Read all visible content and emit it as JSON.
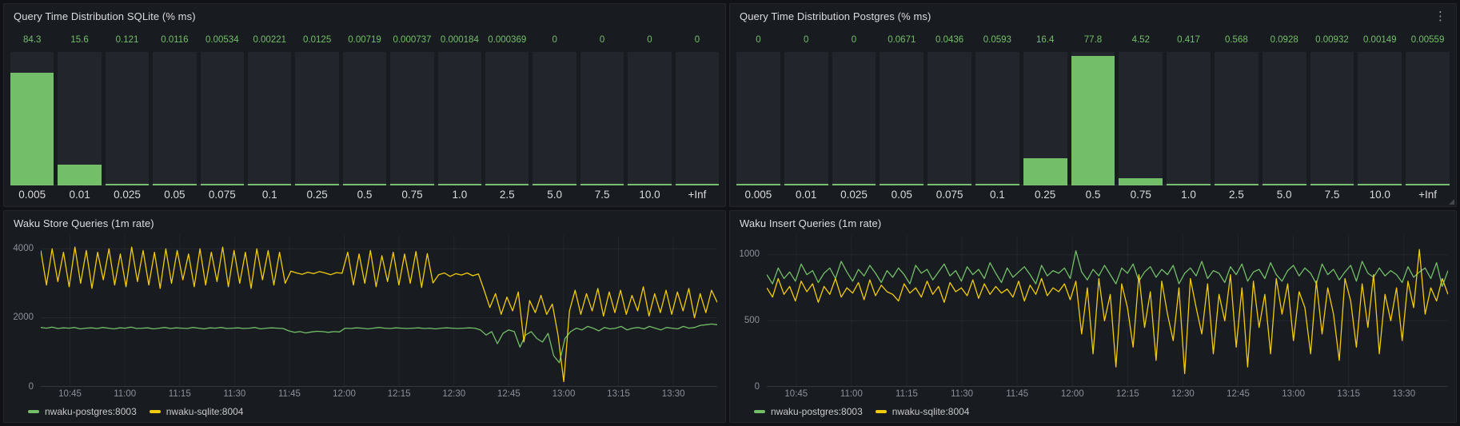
{
  "colors": {
    "green": "#73bf69",
    "yellow": "#f2cc0c",
    "panel_bg": "#181b1f",
    "page_bg": "#111217",
    "bar_track": "#22252b"
  },
  "icons": {
    "panel_menu": "⋮"
  },
  "chart_data": [
    {
      "id": "hist-sqlite",
      "type": "bar",
      "title": "Query Time Distribution SQLite (% ms)",
      "categories": [
        "0.005",
        "0.01",
        "0.025",
        "0.05",
        "0.075",
        "0.1",
        "0.25",
        "0.5",
        "0.75",
        "1.0",
        "2.5",
        "5.0",
        "7.5",
        "10.0",
        "+Inf"
      ],
      "values": [
        84.3,
        15.6,
        0.121,
        0.0116,
        0.00534,
        0.00221,
        0.0125,
        0.00719,
        0.000737,
        0.000184,
        0.000369,
        0,
        0,
        0,
        0
      ],
      "value_labels": [
        "84.3",
        "15.6",
        "0.121",
        "0.0116",
        "0.00534",
        "0.00221",
        "0.0125",
        "0.00719",
        "0.000737",
        "0.000184",
        "0.000369",
        "0",
        "0",
        "0",
        "0"
      ],
      "ymax": 100
    },
    {
      "id": "hist-postgres",
      "type": "bar",
      "title": "Query Time Distribution Postgres (% ms)",
      "categories": [
        "0.005",
        "0.01",
        "0.025",
        "0.05",
        "0.075",
        "0.1",
        "0.25",
        "0.5",
        "0.75",
        "1.0",
        "2.5",
        "5.0",
        "7.5",
        "10.0",
        "+Inf"
      ],
      "values": [
        0,
        0,
        0,
        0.0671,
        0.0436,
        0.0593,
        16.4,
        77.8,
        4.52,
        0.417,
        0.568,
        0.0928,
        0.00932,
        0.00149,
        0.00559
      ],
      "value_labels": [
        "0",
        "0",
        "0",
        "0.0671",
        "0.0436",
        "0.0593",
        "16.4",
        "77.8",
        "4.52",
        "0.417",
        "0.568",
        "0.0928",
        "0.00932",
        "0.00149",
        "0.00559"
      ],
      "ymax": 80
    },
    {
      "id": "ts-store",
      "type": "line",
      "title": "Waku Store Queries (1m rate)",
      "ylim": [
        0,
        4400
      ],
      "yticks": [
        {
          "v": 0,
          "label": "0"
        },
        {
          "v": 2000,
          "label": "2000"
        },
        {
          "v": 4000,
          "label": "4000"
        }
      ],
      "xticks": [
        {
          "label": "10:45",
          "pos": 0.0432
        },
        {
          "label": "11:00",
          "pos": 0.1243
        },
        {
          "label": "11:15",
          "pos": 0.2054
        },
        {
          "label": "11:30",
          "pos": 0.2865
        },
        {
          "label": "11:45",
          "pos": 0.3676
        },
        {
          "label": "12:00",
          "pos": 0.4486
        },
        {
          "label": "12:15",
          "pos": 0.5297
        },
        {
          "label": "12:30",
          "pos": 0.6108
        },
        {
          "label": "12:45",
          "pos": 0.6919
        },
        {
          "label": "13:00",
          "pos": 0.773
        },
        {
          "label": "13:15",
          "pos": 0.8541
        },
        {
          "label": "13:30",
          "pos": 0.9351
        }
      ],
      "series": [
        {
          "name": "nwaku-postgres:8003",
          "color": "green",
          "values": [
            1720,
            1700,
            1730,
            1690,
            1710,
            1700,
            1720,
            1680,
            1700,
            1710,
            1690,
            1720,
            1700,
            1680,
            1710,
            1700,
            1730,
            1690,
            1700,
            1710,
            1680,
            1700,
            1720,
            1690,
            1710,
            1700,
            1690,
            1720,
            1700,
            1680,
            1710,
            1700,
            1720,
            1690,
            1700,
            1710,
            1690,
            1700,
            1720,
            1680,
            1700,
            1710,
            1700,
            1690,
            1620,
            1580,
            1600,
            1560,
            1590,
            1610,
            1600,
            1580,
            1600,
            1590,
            1700,
            1690,
            1710,
            1700,
            1680,
            1700,
            1720,
            1700,
            1690,
            1710,
            1700,
            1690,
            1700,
            1710,
            1690,
            1700,
            1680,
            1700,
            1710,
            1700,
            1690,
            1700,
            1710,
            1700,
            1650,
            1500,
            1600,
            1250,
            1550,
            1650,
            1600,
            1150,
            1500,
            1600,
            1400,
            1300,
            1550,
            900,
            700,
            1400,
            1600,
            1700,
            1650,
            1750,
            1700,
            1620,
            1720,
            1680,
            1700,
            1750,
            1650,
            1700,
            1720,
            1680,
            1750,
            1700,
            1650,
            1720,
            1700,
            1680,
            1750,
            1700,
            1720,
            1780,
            1800,
            1820,
            1800
          ]
        },
        {
          "name": "nwaku-sqlite:8004",
          "color": "yellow",
          "values": [
            3950,
            2950,
            4000,
            3050,
            3900,
            2900,
            4050,
            3000,
            3950,
            2850,
            3900,
            3100,
            4000,
            2950,
            3850,
            2900,
            4050,
            3050,
            3950,
            2950,
            3900,
            2850,
            4000,
            3000,
            3950,
            3100,
            3850,
            2900,
            4000,
            2950,
            3900,
            3050,
            4050,
            2900,
            3950,
            3000,
            3900,
            2850,
            4000,
            3100,
            3950,
            2950,
            3900,
            3000,
            3350,
            3300,
            3260,
            3320,
            3280,
            3340,
            3300,
            3250,
            3310,
            3290,
            3900,
            2950,
            3850,
            3000,
            3950,
            2900,
            3800,
            3050,
            3900,
            2950,
            3850,
            3000,
            3920,
            2880,
            3860,
            3010,
            3250,
            3300,
            3200,
            3280,
            3240,
            3300,
            3220,
            3270,
            2800,
            2300,
            2700,
            2100,
            2600,
            2200,
            2750,
            1300,
            2500,
            2150,
            2650,
            2100,
            2400,
            1500,
            150,
            2200,
            2800,
            2100,
            2700,
            2200,
            2850,
            2050,
            2750,
            2150,
            2800,
            2100,
            2650,
            2200,
            2900,
            2050,
            2700,
            2150,
            2800,
            2100,
            2750,
            2200,
            2850,
            2000,
            2700,
            2150,
            2800,
            2450
          ]
        }
      ]
    },
    {
      "id": "ts-insert",
      "type": "line",
      "title": "Waku Insert Queries (1m rate)",
      "ylim": [
        0,
        1150
      ],
      "yticks": [
        {
          "v": 0,
          "label": "0"
        },
        {
          "v": 500,
          "label": "500"
        },
        {
          "v": 1000,
          "label": "1000"
        }
      ],
      "xticks": [
        {
          "label": "10:45",
          "pos": 0.0432
        },
        {
          "label": "11:00",
          "pos": 0.1243
        },
        {
          "label": "11:15",
          "pos": 0.2054
        },
        {
          "label": "11:30",
          "pos": 0.2865
        },
        {
          "label": "11:45",
          "pos": 0.3676
        },
        {
          "label": "12:00",
          "pos": 0.4486
        },
        {
          "label": "12:15",
          "pos": 0.5297
        },
        {
          "label": "12:30",
          "pos": 0.6108
        },
        {
          "label": "12:45",
          "pos": 0.6919
        },
        {
          "label": "13:00",
          "pos": 0.773
        },
        {
          "label": "13:15",
          "pos": 0.8541
        },
        {
          "label": "13:30",
          "pos": 0.9351
        }
      ],
      "series": [
        {
          "name": "nwaku-postgres:8003",
          "color": "green",
          "values": [
            850,
            780,
            900,
            820,
            870,
            800,
            930,
            850,
            880,
            790,
            860,
            900,
            820,
            950,
            870,
            800,
            890,
            840,
            920,
            860,
            790,
            880,
            830,
            900,
            850,
            780,
            920,
            860,
            890,
            810,
            870,
            930,
            840,
            880,
            800,
            910,
            850,
            890,
            820,
            940,
            860,
            790,
            900,
            830,
            870,
            910,
            850,
            780,
            920,
            840,
            880,
            860,
            900,
            820,
            1030,
            870,
            810,
            890,
            840,
            920,
            850,
            780,
            900,
            860,
            930,
            800,
            870,
            910,
            830,
            890,
            850,
            920,
            780,
            860,
            900,
            840,
            950,
            820,
            880,
            860,
            790,
            910,
            850,
            930,
            800,
            870,
            890,
            820,
            940,
            850,
            800,
            880,
            920,
            840,
            900,
            860,
            780,
            930,
            850,
            890,
            810,
            870,
            920,
            800,
            950,
            860,
            830,
            900,
            840,
            880,
            850,
            790,
            910,
            830,
            870,
            900,
            820,
            940,
            760,
            880
          ]
        },
        {
          "name": "nwaku-sqlite:8004",
          "color": "yellow",
          "values": [
            750,
            680,
            820,
            700,
            760,
            650,
            800,
            720,
            780,
            640,
            760,
            700,
            820,
            680,
            750,
            710,
            790,
            660,
            810,
            690,
            770,
            720,
            700,
            650,
            780,
            710,
            750,
            680,
            800,
            700,
            760,
            640,
            790,
            720,
            750,
            690,
            810,
            670,
            780,
            700,
            760,
            710,
            740,
            680,
            800,
            650,
            770,
            700,
            820,
            690,
            750,
            720,
            780,
            660,
            800,
            400,
            750,
            250,
            820,
            500,
            700,
            150,
            780,
            600,
            300,
            850,
            450,
            720,
            200,
            800,
            550,
            350,
            750,
            100,
            820,
            600,
            400,
            780,
            250,
            700,
            500,
            850,
            300,
            750,
            150,
            800,
            450,
            700,
            250,
            820,
            550,
            780,
            350,
            720,
            600,
            250,
            800,
            400,
            750,
            550,
            200,
            820,
            650,
            300,
            780,
            450,
            850,
            250,
            700,
            500,
            750,
            350,
            800,
            600,
            1040,
            550,
            750,
            650,
            820,
            700
          ]
        }
      ]
    }
  ]
}
